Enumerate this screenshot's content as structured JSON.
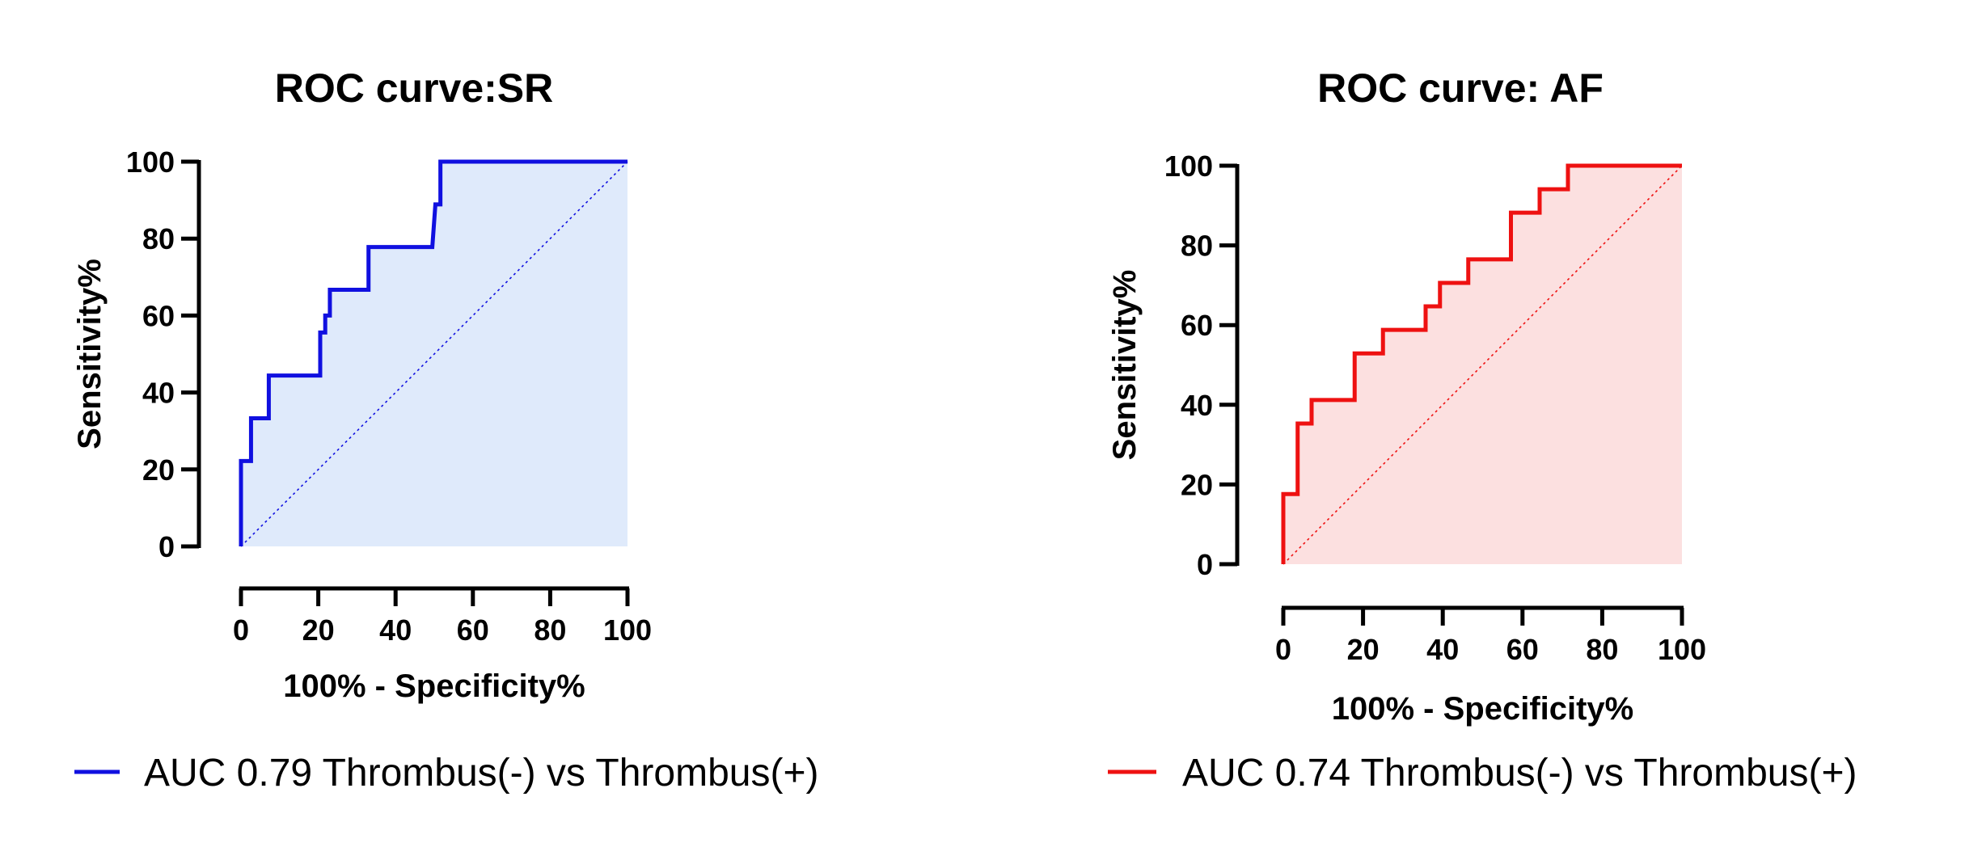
{
  "chart_data": [
    {
      "type": "line",
      "title": "ROC curve:SR",
      "xlabel": "100% - Specificity%",
      "ylabel": "Sensitivity%",
      "xlim": [
        0,
        100
      ],
      "ylim": [
        0,
        100
      ],
      "xticks": [
        "0",
        "20",
        "40",
        "60",
        "80",
        "100"
      ],
      "yticks": [
        "0",
        "20",
        "40",
        "60",
        "80",
        "100"
      ],
      "grid": false,
      "legend_position": "bottom",
      "reference_line": "diagonal, dotted",
      "series": [
        {
          "name": "AUC 0.79 Thrombus(-) vs Thrombus(+)",
          "color": "#1010e0",
          "fill_color": "#dfeafb",
          "x": [
            0,
            0,
            2.6,
            2.6,
            7.2,
            7.2,
            20.5,
            20.5,
            21.8,
            21.8,
            23,
            23,
            33,
            33,
            49.5,
            50.3,
            50.3,
            51.6,
            51.6,
            100
          ],
          "y": [
            0,
            22.2,
            22.2,
            33.3,
            33.3,
            44.4,
            44.4,
            55.6,
            55.6,
            60,
            60,
            66.7,
            66.7,
            77.8,
            77.8,
            88.9,
            88.9,
            88.9,
            100,
            100
          ]
        }
      ]
    },
    {
      "type": "line",
      "title": "ROC curve: AF",
      "xlabel": "100% - Specificity%",
      "ylabel": "Sensitivity%",
      "xlim": [
        0,
        100
      ],
      "ylim": [
        0,
        100
      ],
      "xticks": [
        "0",
        "20",
        "40",
        "60",
        "80",
        "100"
      ],
      "yticks": [
        "0",
        "20",
        "40",
        "60",
        "80",
        "100"
      ],
      "grid": false,
      "legend_position": "bottom",
      "reference_line": "diagonal, dotted",
      "series": [
        {
          "name": "AUC 0.74 Thrombus(-) vs Thrombus(+)",
          "color": "#ee1111",
          "fill_color": "#fce0e0",
          "x": [
            0,
            0,
            3.6,
            3.6,
            7.1,
            7.1,
            17.9,
            17.9,
            25,
            25,
            35.7,
            35.7,
            39.3,
            39.3,
            46.4,
            46.4,
            57.1,
            57.1,
            64.3,
            64.3,
            71.4,
            71.4,
            100
          ],
          "y": [
            0,
            17.6,
            17.6,
            35.3,
            35.3,
            41.2,
            41.2,
            52.9,
            52.9,
            58.8,
            58.8,
            64.7,
            64.7,
            70.6,
            70.6,
            76.5,
            76.5,
            88.2,
            88.2,
            94.1,
            94.1,
            100,
            100
          ]
        }
      ]
    }
  ]
}
